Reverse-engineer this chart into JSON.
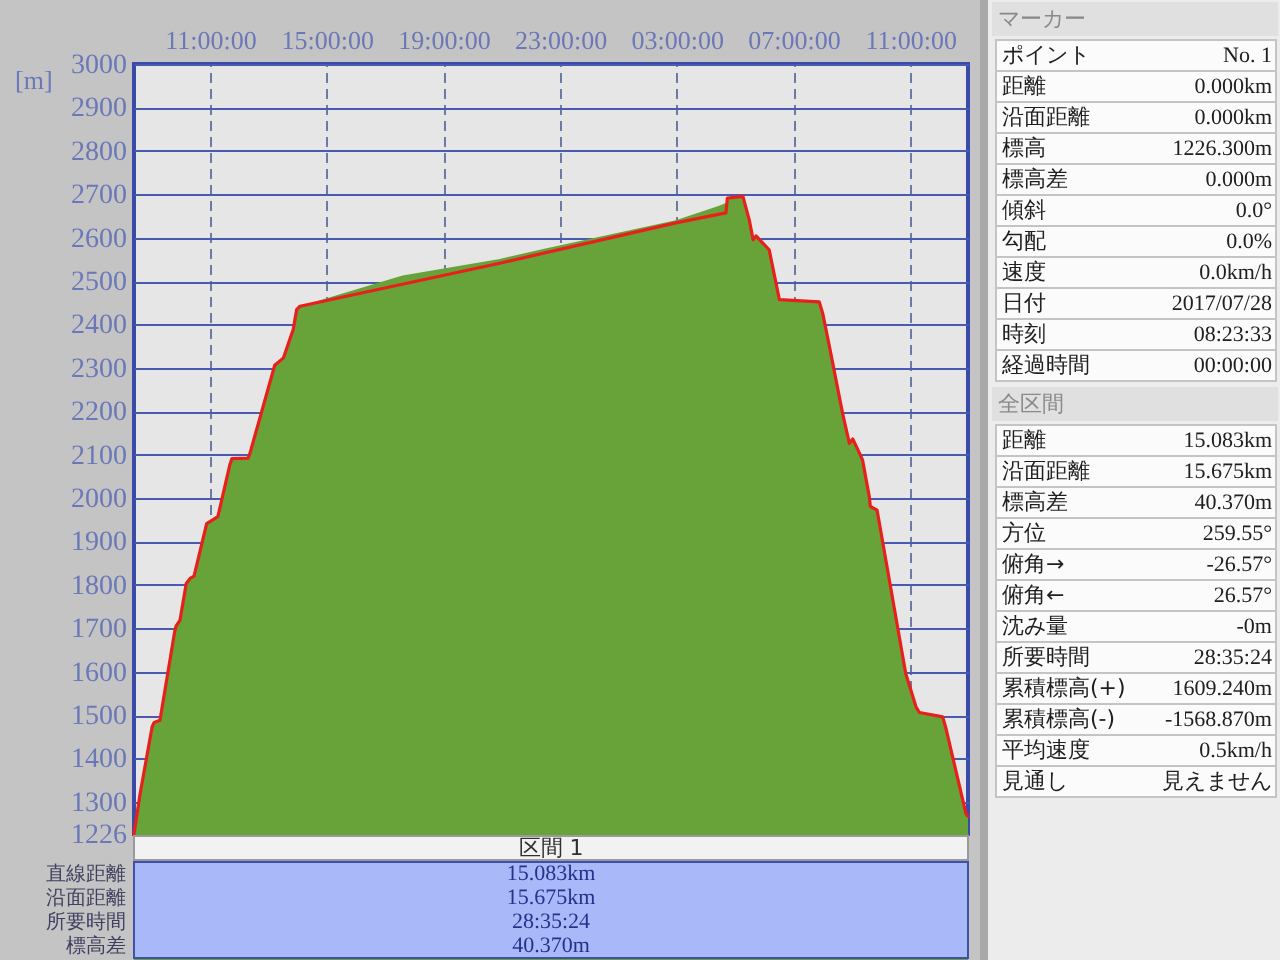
{
  "chart_data": [
    {
      "type": "area",
      "ylabel": "[m]",
      "xlim": [
        "2017-07-28T08:23:33",
        "2017-07-29T12:58:57"
      ],
      "ylim": [
        1226,
        3000
      ],
      "xticks": [
        {
          "value": "2017-07-28T11:00",
          "label": "11:00:00"
        },
        {
          "value": "2017-07-28T15:00",
          "label": "15:00:00"
        },
        {
          "value": "2017-07-28T19:00",
          "label": "19:00:00"
        },
        {
          "value": "2017-07-28T23:00",
          "label": "23:00:00"
        },
        {
          "value": "2017-07-29T03:00",
          "label": "03:00:00"
        },
        {
          "value": "2017-07-29T07:00",
          "label": "07:00:00"
        },
        {
          "value": "2017-07-29T11:00",
          "label": "11:00:00"
        }
      ],
      "yticks": [
        1226,
        1300,
        1400,
        1500,
        1600,
        1700,
        1800,
        1900,
        2000,
        2100,
        2200,
        2300,
        2400,
        2500,
        2600,
        2700,
        2800,
        2900,
        3000
      ],
      "grid": true,
      "series": [
        {
          "type": "area",
          "color": "#68a33a",
          "x": [
            "2017-07-28T08:23:33",
            "2017-07-28T08:36",
            "2017-07-28T09:01",
            "2017-07-28T09:05",
            "2017-07-28T09:17",
            "2017-07-28T09:47",
            "2017-07-28T09:50",
            "2017-07-28T09:58",
            "2017-07-28T10:11",
            "2017-07-28T10:19",
            "2017-07-28T10:27",
            "2017-07-28T10:53",
            "2017-07-28T11:16",
            "2017-07-28T11:41",
            "2017-07-28T11:45",
            "2017-07-28T12:18",
            "2017-07-28T12:22",
            "2017-07-28T13:13",
            "2017-07-28T13:31",
            "2017-07-28T13:51",
            "2017-07-28T13:58",
            "2017-07-28T14:05",
            "2017-07-28T17:36",
            "2017-07-28T20:56",
            "2017-07-28T22:30",
            "2017-07-29T02:58",
            "2017-07-29T04:24",
            "2017-07-29T04:41",
            "2017-07-29T04:44",
            "2017-07-29T05:16",
            "2017-07-29T05:29",
            "2017-07-29T05:37",
            "2017-07-29T05:43",
            "2017-07-29T05:54",
            "2017-07-29T06:10",
            "2017-07-29T06:31",
            "2017-07-29T07:53",
            "2017-07-29T08:00",
            "2017-07-29T08:14",
            "2017-07-29T08:41",
            "2017-07-29T08:55",
            "2017-07-29T09:02",
            "2017-07-29T09:16",
            "2017-07-29T09:22",
            "2017-07-29T09:36",
            "2017-07-29T09:38",
            "2017-07-29T09:52",
            "2017-07-29T10:51",
            "2017-07-29T11:12",
            "2017-07-29T11:19",
            "2017-07-29T12:07",
            "2017-07-29T12:13",
            "2017-07-29T12:55",
            "2017-07-29T12:58:57"
          ],
          "values": [
            1226,
            1318,
            1474,
            1483,
            1488,
            1691,
            1705,
            1718,
            1803,
            1815,
            1820,
            1941,
            1957,
            2078,
            2091,
            2092,
            2103,
            2306,
            2323,
            2388,
            2434,
            2442,
            2513,
            2551,
            2575,
            2640,
            2672,
            2680,
            2691,
            2695,
            2641,
            2595,
            2604,
            2591,
            2572,
            2457,
            2452,
            2426,
            2349,
            2195,
            2126,
            2136,
            2103,
            2088,
            2003,
            1981,
            1972,
            1595,
            1519,
            1506,
            1496,
            1472,
            1272,
            1267
          ]
        },
        {
          "type": "line",
          "color": "#e8201c",
          "x": [
            "2017-07-28T08:23:33",
            "2017-07-28T08:36",
            "2017-07-28T09:01",
            "2017-07-28T09:05",
            "2017-07-28T09:17",
            "2017-07-28T09:47",
            "2017-07-28T09:50",
            "2017-07-28T09:58",
            "2017-07-28T10:11",
            "2017-07-28T10:19",
            "2017-07-28T10:27",
            "2017-07-28T10:53",
            "2017-07-28T11:16",
            "2017-07-28T11:41",
            "2017-07-28T11:45",
            "2017-07-28T12:18",
            "2017-07-28T12:22",
            "2017-07-28T13:13",
            "2017-07-28T13:31",
            "2017-07-28T13:51",
            "2017-07-28T13:58",
            "2017-07-28T14:05",
            "2017-07-28T20:56",
            "2017-07-29T02:58",
            "2017-07-29T04:41",
            "2017-07-29T04:44",
            "2017-07-29T05:16",
            "2017-07-29T05:29",
            "2017-07-29T05:37",
            "2017-07-29T05:43",
            "2017-07-29T05:54",
            "2017-07-29T06:10",
            "2017-07-29T06:31",
            "2017-07-29T07:53",
            "2017-07-29T08:00",
            "2017-07-29T08:14",
            "2017-07-29T08:41",
            "2017-07-29T08:55",
            "2017-07-29T09:02",
            "2017-07-29T09:16",
            "2017-07-29T09:22",
            "2017-07-29T09:36",
            "2017-07-29T09:38",
            "2017-07-29T09:52",
            "2017-07-29T10:51",
            "2017-07-29T11:12",
            "2017-07-29T11:19",
            "2017-07-29T12:07",
            "2017-07-29T12:13",
            "2017-07-29T12:55",
            "2017-07-29T12:58:57"
          ],
          "values": [
            1226,
            1318,
            1474,
            1483,
            1488,
            1691,
            1705,
            1718,
            1803,
            1815,
            1820,
            1941,
            1957,
            2078,
            2091,
            2092,
            2103,
            2306,
            2323,
            2388,
            2434,
            2442,
            2541,
            2634,
            2657,
            2691,
            2695,
            2641,
            2595,
            2604,
            2591,
            2572,
            2457,
            2452,
            2426,
            2349,
            2195,
            2126,
            2136,
            2103,
            2088,
            2003,
            1981,
            1972,
            1595,
            1519,
            1506,
            1496,
            1472,
            1272,
            1267
          ]
        }
      ]
    },
    {
      "type": "other",
      "title": "区間 1",
      "categories": [
        "直線距離",
        "沿面距離",
        "所要時間",
        "標高差"
      ],
      "value_labels": [
        "15.083km",
        "15.675km",
        "28:35:24",
        "40.370m"
      ]
    },
    {
      "type": "other",
      "title": "マーカー",
      "categories": [
        "ポイント",
        "距離",
        "沿面距離",
        "標高",
        "標高差",
        "傾斜",
        "勾配",
        "速度",
        "日付",
        "時刻",
        "経過時間"
      ],
      "value_labels": [
        "No. 1",
        "0.000km",
        "0.000km",
        "1226.300m",
        "0.000m",
        "0.0°",
        "0.0%",
        "0.0km/h",
        "2017/07/28",
        "08:23:33",
        "00:00:00"
      ]
    },
    {
      "type": "other",
      "title": "全区間",
      "categories": [
        "距離",
        "沿面距離",
        "標高差",
        "方位",
        "俯角→",
        "俯角←",
        "沈み量",
        "所要時間",
        "累積標高(+)",
        "累積標高(-)",
        "平均速度",
        "見通し"
      ],
      "value_labels": [
        "15.083km",
        "15.675km",
        "40.370m",
        "259.55°",
        "-26.57°",
        "26.57°",
        "-0m",
        "28:35:24",
        "1609.240m",
        "-1568.870m",
        "0.5km/h",
        "見えません"
      ]
    }
  ]
}
